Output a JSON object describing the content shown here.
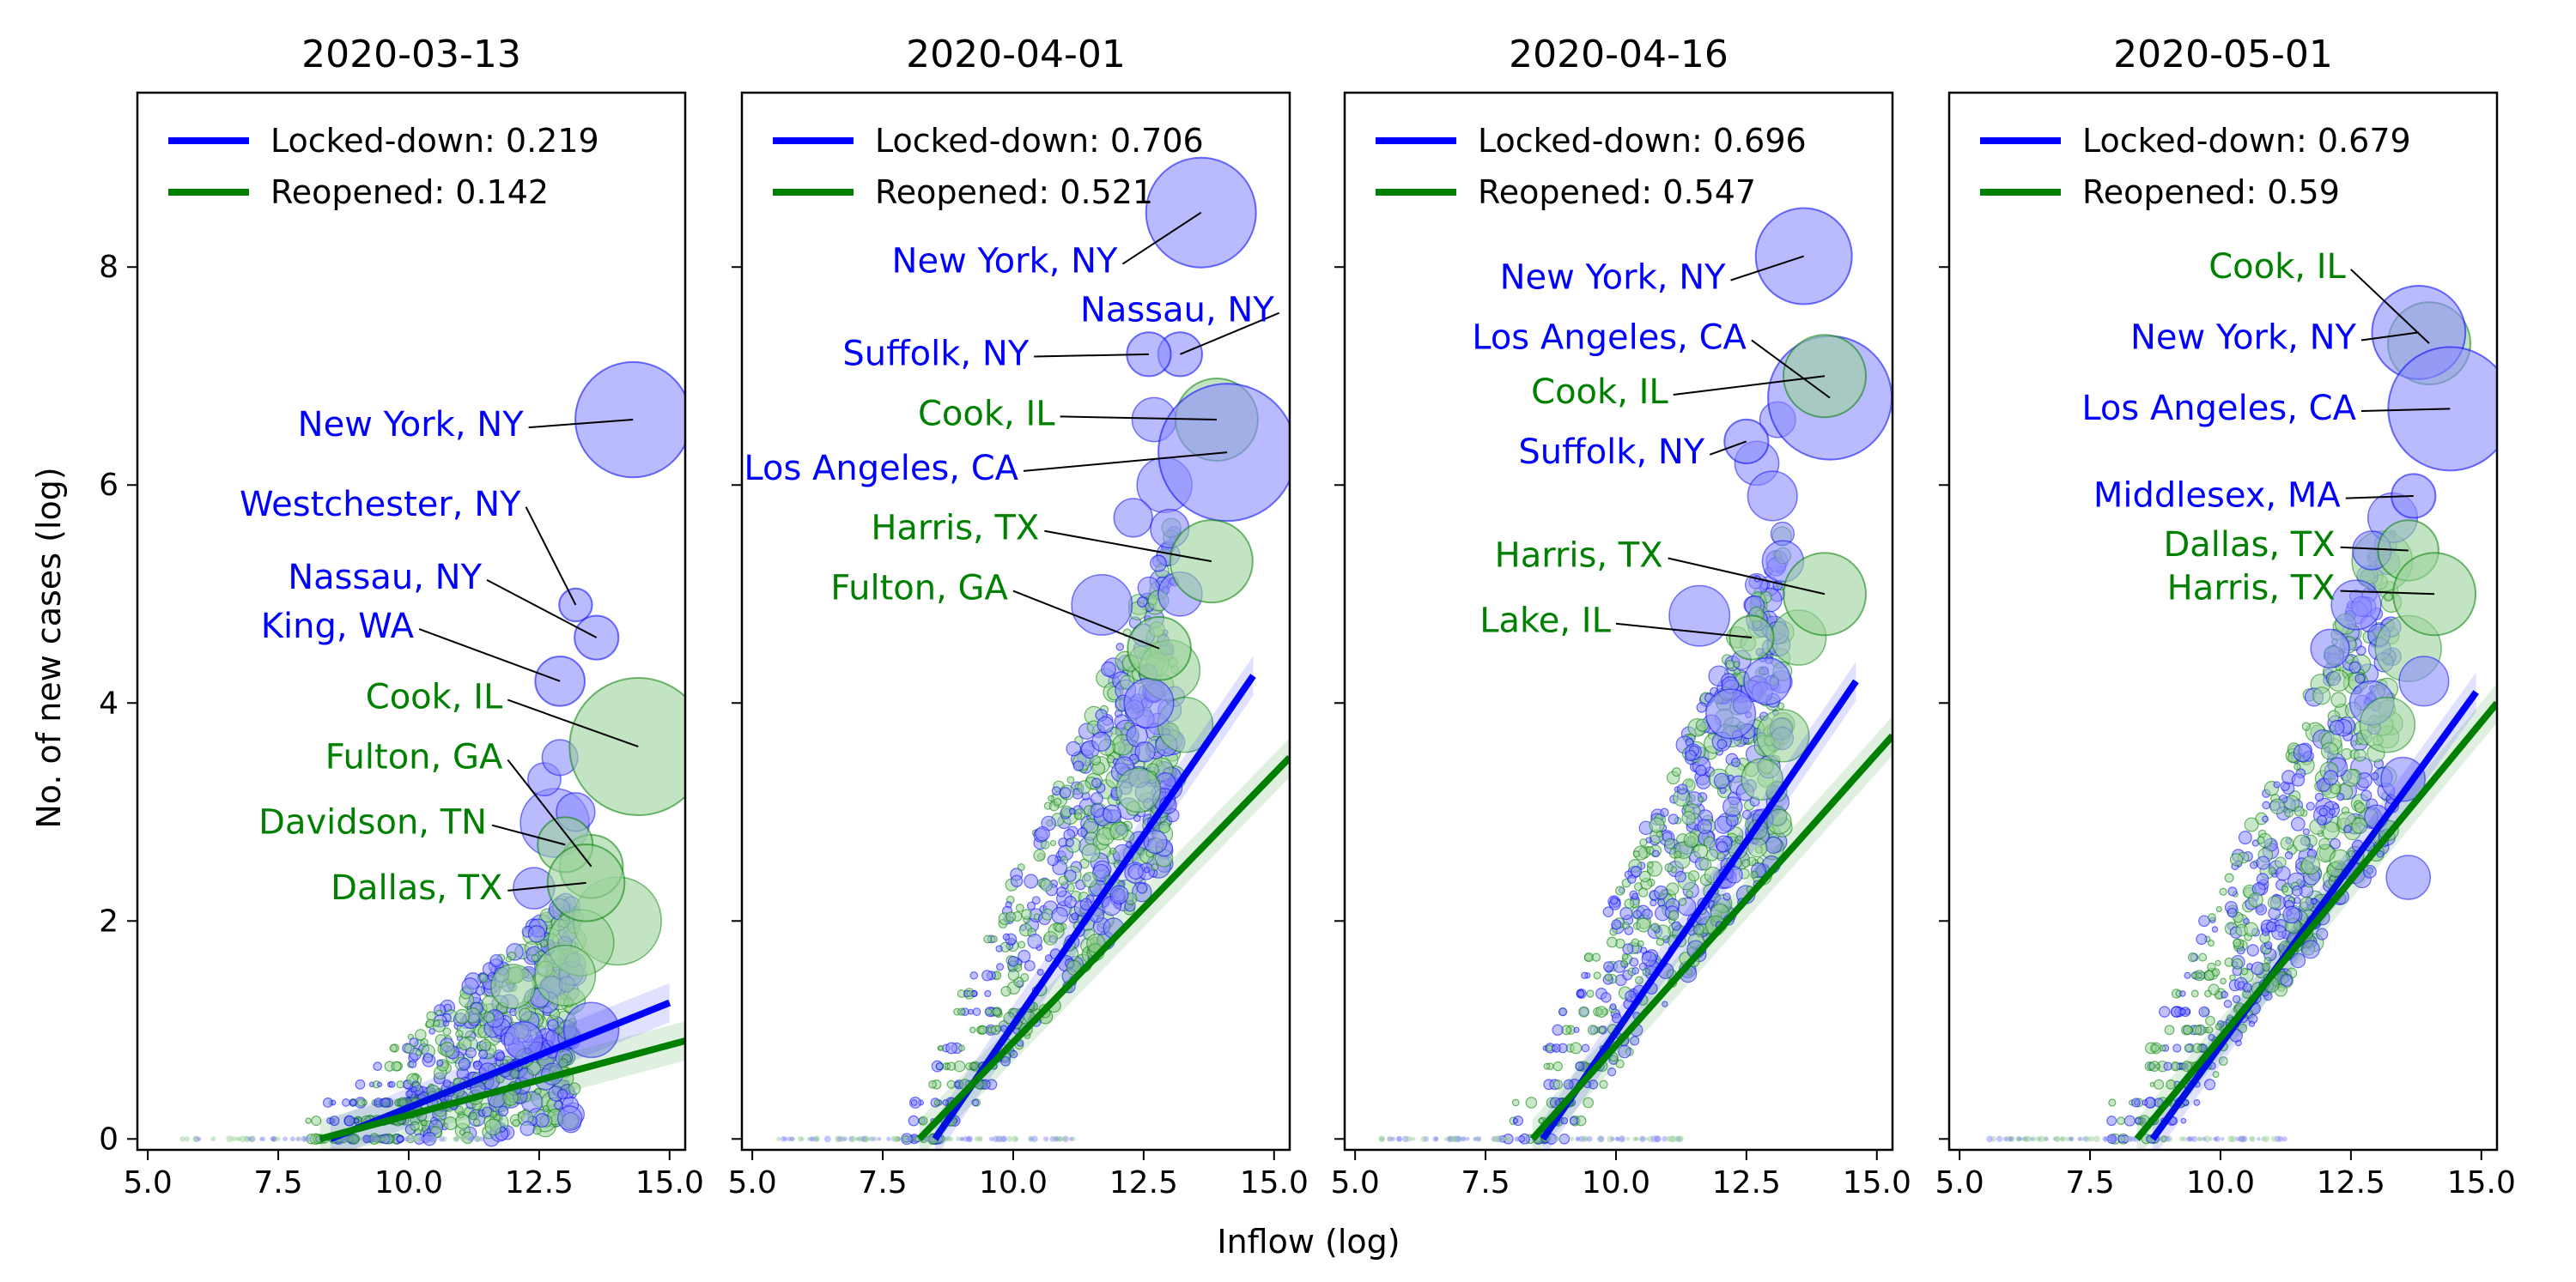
{
  "xlabel": "Inflow (log)",
  "ylabel": "No. of new cases (log)",
  "colors": {
    "locked": "#0000ff",
    "reopened": "#008000",
    "locked_fill": "#8c8cff",
    "reopened_fill": "#9bd29b"
  },
  "chart_data": [
    {
      "type": "scatter",
      "title": "2020-03-13",
      "xlim": [
        4.8,
        15.3
      ],
      "ylim": [
        -0.1,
        9.6
      ],
      "xticks": [
        5.0,
        7.5,
        10.0,
        12.5,
        15.0
      ],
      "xtick_labels": [
        "5.0",
        "7.5",
        "10.0",
        "12.5",
        "15.0"
      ],
      "yticks": [
        0,
        2,
        4,
        6,
        8
      ],
      "ytick_labels": [
        "0",
        "2",
        "4",
        "6",
        "8"
      ],
      "grid": false,
      "legend_position": "top-left",
      "series": [
        {
          "name": "Locked-down: 0.219",
          "color": "#0000ff",
          "fit": [
            [
              8.5,
              0.0
            ],
            [
              15.0,
              1.25
            ]
          ]
        },
        {
          "name": "Reopened: 0.142",
          "color": "#008000",
          "fit": [
            [
              8.3,
              0.0
            ],
            [
              15.3,
              0.9
            ]
          ]
        }
      ],
      "annotations": [
        {
          "text": "New York, NY",
          "group": "locked",
          "x": 14.3,
          "y": 6.6,
          "r": 4.2,
          "tx": 12.2,
          "ty": 6.45
        },
        {
          "text": "Westchester, NY",
          "group": "locked",
          "x": 13.2,
          "y": 4.9,
          "r": 1.2,
          "tx": 12.15,
          "ty": 5.72
        },
        {
          "text": "Nassau, NY",
          "group": "locked",
          "x": 13.6,
          "y": 4.6,
          "r": 1.6,
          "tx": 11.4,
          "ty": 5.05
        },
        {
          "text": "King, WA",
          "group": "locked",
          "x": 12.9,
          "y": 4.2,
          "r": 1.8,
          "tx": 10.1,
          "ty": 4.6
        },
        {
          "text": "Cook, IL",
          "group": "reopened",
          "x": 14.4,
          "y": 3.6,
          "r": 5.0,
          "tx": 11.8,
          "ty": 3.95
        },
        {
          "text": "Fulton, GA",
          "group": "reopened",
          "x": 13.5,
          "y": 2.5,
          "r": 2.3,
          "tx": 11.8,
          "ty": 3.4
        },
        {
          "text": "Davidson, TN",
          "group": "reopened",
          "x": 13.0,
          "y": 2.7,
          "r": 2.0,
          "tx": 11.5,
          "ty": 2.8
        },
        {
          "text": "Dallas, TX",
          "group": "reopened",
          "x": 13.4,
          "y": 2.35,
          "r": 2.8,
          "tx": 11.8,
          "ty": 2.2
        }
      ],
      "bulk": {
        "xmin": 8.5,
        "xmax": 13.2,
        "xspan": 4.0,
        "slope": 0.26,
        "spread": 1.6,
        "seed": 13
      },
      "extra_bubbles": [
        {
          "group": "reopened",
          "x": 14.0,
          "y": 2.0,
          "r": 3.2
        },
        {
          "group": "locked",
          "x": 12.8,
          "y": 2.9,
          "r": 2.5
        },
        {
          "group": "reopened",
          "x": 13.3,
          "y": 1.8,
          "r": 2.4
        },
        {
          "group": "locked",
          "x": 13.5,
          "y": 1.0,
          "r": 2.0
        },
        {
          "group": "reopened",
          "x": 13.0,
          "y": 1.5,
          "r": 2.2
        },
        {
          "group": "locked",
          "x": 12.4,
          "y": 2.3,
          "r": 1.5
        },
        {
          "group": "locked",
          "x": 12.6,
          "y": 3.3,
          "r": 1.2
        },
        {
          "group": "locked",
          "x": 12.9,
          "y": 3.5,
          "r": 1.3
        },
        {
          "group": "reopened",
          "x": 12.0,
          "y": 1.4,
          "r": 1.6
        },
        {
          "group": "locked",
          "x": 13.2,
          "y": 3.0,
          "r": 1.4
        },
        {
          "group": "locked",
          "x": 12.2,
          "y": 0.9,
          "r": 1.4
        }
      ]
    },
    {
      "type": "scatter",
      "title": "2020-04-01",
      "xlim": [
        4.8,
        15.3
      ],
      "ylim": [
        -0.1,
        9.6
      ],
      "xticks": [
        5.0,
        7.5,
        10.0,
        12.5,
        15.0
      ],
      "xtick_labels": [
        "5.0",
        "7.5",
        "10.0",
        "12.5",
        "15.0"
      ],
      "yticks": [
        0,
        2,
        4,
        6,
        8
      ],
      "ytick_labels": [],
      "grid": false,
      "legend_position": "top-left",
      "series": [
        {
          "name": "Locked-down: 0.706",
          "color": "#0000ff",
          "fit": [
            [
              8.5,
              0.0
            ],
            [
              14.6,
              4.25
            ]
          ]
        },
        {
          "name": "Reopened: 0.521",
          "color": "#008000",
          "fit": [
            [
              8.2,
              0.0
            ],
            [
              15.3,
              3.5
            ]
          ]
        }
      ],
      "annotations": [
        {
          "text": "New York, NY",
          "group": "locked",
          "x": 13.6,
          "y": 8.5,
          "r": 4.0,
          "tx": 12.0,
          "ty": 7.95
        },
        {
          "text": "Nassau, NY",
          "group": "locked",
          "x": 13.2,
          "y": 7.2,
          "r": 1.6,
          "tx": 15.0,
          "ty": 7.5
        },
        {
          "text": "Suffolk, NY",
          "group": "locked",
          "x": 12.6,
          "y": 7.2,
          "r": 1.6,
          "tx": 10.3,
          "ty": 7.1
        },
        {
          "text": "Cook, IL",
          "group": "reopened",
          "x": 13.9,
          "y": 6.6,
          "r": 3.0,
          "tx": 10.8,
          "ty": 6.55
        },
        {
          "text": "Los Angeles, CA",
          "group": "locked",
          "x": 14.1,
          "y": 6.3,
          "r": 5.0,
          "tx": 10.1,
          "ty": 6.05
        },
        {
          "text": "Harris, TX",
          "group": "reopened",
          "x": 13.8,
          "y": 5.3,
          "r": 3.0,
          "tx": 10.5,
          "ty": 5.5
        },
        {
          "text": "Fulton, GA",
          "group": "reopened",
          "x": 12.8,
          "y": 4.5,
          "r": 2.3,
          "tx": 9.9,
          "ty": 4.95
        }
      ],
      "bulk": {
        "xmin": 8.2,
        "xmax": 13.2,
        "xspan": 4.2,
        "slope": 0.85,
        "spread": 2.2,
        "seed": 41
      },
      "extra_bubbles": [
        {
          "group": "locked",
          "x": 12.7,
          "y": 6.6,
          "r": 1.6
        },
        {
          "group": "locked",
          "x": 12.9,
          "y": 6.0,
          "r": 2.0
        },
        {
          "group": "locked",
          "x": 12.3,
          "y": 5.7,
          "r": 1.4
        },
        {
          "group": "locked",
          "x": 11.7,
          "y": 4.9,
          "r": 2.2
        },
        {
          "group": "reopened",
          "x": 13.0,
          "y": 4.3,
          "r": 2.2
        },
        {
          "group": "locked",
          "x": 13.2,
          "y": 5.0,
          "r": 1.6
        },
        {
          "group": "reopened",
          "x": 13.3,
          "y": 3.8,
          "r": 2.0
        },
        {
          "group": "locked",
          "x": 12.6,
          "y": 4.0,
          "r": 1.8
        },
        {
          "group": "reopened",
          "x": 12.4,
          "y": 3.2,
          "r": 1.6
        },
        {
          "group": "locked",
          "x": 13.0,
          "y": 5.6,
          "r": 1.4
        }
      ]
    },
    {
      "type": "scatter",
      "title": "2020-04-16",
      "xlim": [
        4.8,
        15.3
      ],
      "ylim": [
        -0.1,
        9.6
      ],
      "xticks": [
        5.0,
        7.5,
        10.0,
        12.5,
        15.0
      ],
      "xtick_labels": [
        "5.0",
        "7.5",
        "10.0",
        "12.5",
        "15.0"
      ],
      "yticks": [
        0,
        2,
        4,
        6,
        8
      ],
      "ytick_labels": [],
      "grid": false,
      "legend_position": "top-left",
      "series": [
        {
          "name": "Locked-down: 0.696",
          "color": "#0000ff",
          "fit": [
            [
              8.6,
              0.0
            ],
            [
              14.6,
              4.2
            ]
          ]
        },
        {
          "name": "Reopened: 0.547",
          "color": "#008000",
          "fit": [
            [
              8.4,
              0.0
            ],
            [
              15.3,
              3.7
            ]
          ]
        }
      ],
      "annotations": [
        {
          "text": "New York, NY",
          "group": "locked",
          "x": 13.6,
          "y": 8.1,
          "r": 3.5,
          "tx": 12.1,
          "ty": 7.8
        },
        {
          "text": "Los Angeles, CA",
          "group": "locked",
          "x": 14.1,
          "y": 6.8,
          "r": 4.5,
          "tx": 12.5,
          "ty": 7.25
        },
        {
          "text": "Cook, IL",
          "group": "reopened",
          "x": 14.0,
          "y": 7.0,
          "r": 3.0,
          "tx": 11.0,
          "ty": 6.75
        },
        {
          "text": "Suffolk, NY",
          "group": "locked",
          "x": 12.5,
          "y": 6.4,
          "r": 1.6,
          "tx": 11.7,
          "ty": 6.2
        },
        {
          "text": "Harris, TX",
          "group": "reopened",
          "x": 14.0,
          "y": 5.0,
          "r": 3.0,
          "tx": 10.9,
          "ty": 5.25
        },
        {
          "text": "Lake, IL",
          "group": "reopened",
          "x": 12.6,
          "y": 4.6,
          "r": 1.6,
          "tx": 9.9,
          "ty": 4.65
        }
      ],
      "bulk": {
        "xmin": 8.3,
        "xmax": 13.2,
        "xspan": 4.2,
        "slope": 0.85,
        "spread": 2.2,
        "seed": 77
      },
      "extra_bubbles": [
        {
          "group": "locked",
          "x": 12.7,
          "y": 6.2,
          "r": 1.6
        },
        {
          "group": "locked",
          "x": 13.0,
          "y": 5.9,
          "r": 1.8
        },
        {
          "group": "locked",
          "x": 13.2,
          "y": 5.3,
          "r": 1.5
        },
        {
          "group": "locked",
          "x": 11.6,
          "y": 4.8,
          "r": 2.2
        },
        {
          "group": "reopened",
          "x": 13.5,
          "y": 4.6,
          "r": 2.0
        },
        {
          "group": "locked",
          "x": 12.9,
          "y": 4.2,
          "r": 1.7
        },
        {
          "group": "reopened",
          "x": 13.2,
          "y": 3.7,
          "r": 1.9
        },
        {
          "group": "locked",
          "x": 12.2,
          "y": 3.9,
          "r": 1.8
        },
        {
          "group": "reopened",
          "x": 12.8,
          "y": 3.3,
          "r": 1.5
        },
        {
          "group": "locked",
          "x": 13.1,
          "y": 6.6,
          "r": 1.3
        }
      ]
    },
    {
      "type": "scatter",
      "title": "2020-05-01",
      "xlim": [
        4.8,
        15.3
      ],
      "ylim": [
        -0.1,
        9.6
      ],
      "xticks": [
        5.0,
        7.5,
        10.0,
        12.5,
        15.0
      ],
      "xtick_labels": [
        "5.0",
        "7.5",
        "10.0",
        "12.5",
        "15.0"
      ],
      "yticks": [
        0,
        2,
        4,
        6,
        8
      ],
      "ytick_labels": [],
      "grid": false,
      "legend_position": "top-left",
      "series": [
        {
          "name": "Locked-down: 0.679",
          "color": "#0000ff",
          "fit": [
            [
              8.7,
              0.0
            ],
            [
              14.9,
              4.1
            ]
          ]
        },
        {
          "name": "Reopened: 0.59",
          "color": "#008000",
          "fit": [
            [
              8.4,
              0.0
            ],
            [
              15.3,
              4.0
            ]
          ]
        }
      ],
      "annotations": [
        {
          "text": "Cook, IL",
          "group": "reopened",
          "x": 14.0,
          "y": 7.3,
          "r": 3.0,
          "tx": 12.4,
          "ty": 7.9
        },
        {
          "text": "New York, NY",
          "group": "locked",
          "x": 13.8,
          "y": 7.4,
          "r": 3.4,
          "tx": 12.6,
          "ty": 7.25
        },
        {
          "text": "Los Angeles, CA",
          "group": "locked",
          "x": 14.4,
          "y": 6.7,
          "r": 4.5,
          "tx": 12.6,
          "ty": 6.6
        },
        {
          "text": "Middlesex, MA",
          "group": "locked",
          "x": 13.7,
          "y": 5.9,
          "r": 1.6,
          "tx": 12.3,
          "ty": 5.8
        },
        {
          "text": "Dallas, TX",
          "group": "reopened",
          "x": 13.6,
          "y": 5.4,
          "r": 2.2,
          "tx": 12.2,
          "ty": 5.35
        },
        {
          "text": "Harris, TX",
          "group": "reopened",
          "x": 14.1,
          "y": 5.0,
          "r": 3.0,
          "tx": 12.2,
          "ty": 4.95
        }
      ],
      "bulk": {
        "xmin": 8.3,
        "xmax": 13.3,
        "xspan": 4.3,
        "slope": 0.85,
        "spread": 2.2,
        "seed": 101
      },
      "extra_bubbles": [
        {
          "group": "reopened",
          "x": 13.1,
          "y": 5.3,
          "r": 2.2
        },
        {
          "group": "locked",
          "x": 13.3,
          "y": 5.7,
          "r": 1.8
        },
        {
          "group": "locked",
          "x": 12.6,
          "y": 4.9,
          "r": 1.8
        },
        {
          "group": "reopened",
          "x": 13.6,
          "y": 4.5,
          "r": 2.4
        },
        {
          "group": "locked",
          "x": 13.9,
          "y": 4.2,
          "r": 1.8
        },
        {
          "group": "locked",
          "x": 12.9,
          "y": 4.0,
          "r": 1.6
        },
        {
          "group": "reopened",
          "x": 13.2,
          "y": 3.8,
          "r": 2.0
        },
        {
          "group": "locked",
          "x": 13.5,
          "y": 3.3,
          "r": 1.6
        },
        {
          "group": "locked",
          "x": 13.6,
          "y": 2.4,
          "r": 1.6
        },
        {
          "group": "locked",
          "x": 12.1,
          "y": 4.5,
          "r": 1.4
        },
        {
          "group": "locked",
          "x": 12.9,
          "y": 5.4,
          "r": 1.4
        }
      ]
    }
  ]
}
